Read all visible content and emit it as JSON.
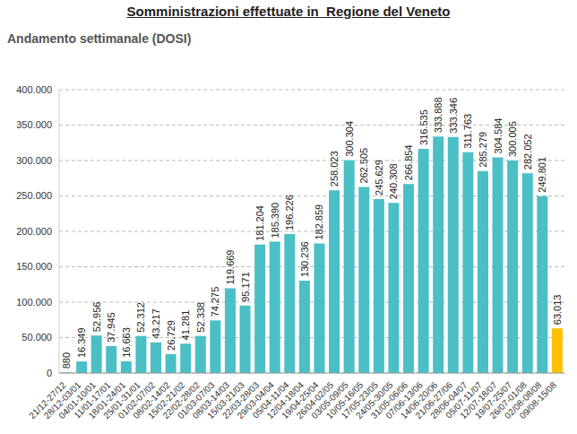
{
  "chart_data": {
    "type": "bar",
    "title": "Somministrazioni effettuate in  Regione del Veneto",
    "subtitle": "Andamento settimanale (DOSI)",
    "categories": [
      "21/12-27/12",
      "28/12-03/01",
      "04/01-10/01",
      "11/01-17/01",
      "18/01-24/01",
      "25/01-31/01",
      "01/02-07/02",
      "08/02-14/02",
      "15/02-21/02",
      "22/02-28/02",
      "01/03-07/03",
      "08/03-14/03",
      "15/03-21/03",
      "22/03-28/03",
      "29/03-04/04",
      "05/04-11/04",
      "12/04-18/04",
      "19/04-25/04",
      "26/04-02/05",
      "03/05-09/05",
      "10/05-16/05",
      "17/05-23/05",
      "24/05-30/05",
      "31/05-06/06",
      "07/06-13/06",
      "14/06-20/06",
      "21/06-27/06",
      "28/06-04/07",
      "05/07-11/07",
      "12/07-18/07",
      "19/07-25/07",
      "26/07-01/08",
      "02/08-08/08",
      "09/08-15/08"
    ],
    "values": [
      880,
      16349,
      52956,
      37945,
      16663,
      52312,
      43217,
      26729,
      41281,
      52338,
      74275,
      119669,
      95171,
      181204,
      185390,
      196226,
      130236,
      182859,
      258023,
      300304,
      262505,
      245629,
      240308,
      266854,
      316535,
      333888,
      333346,
      311763,
      285279,
      304584,
      300005,
      282052,
      249801,
      63013
    ],
    "value_labels": [
      "880",
      "16.349",
      "52.956",
      "37.945",
      "16.663",
      "52.312",
      "43.217",
      "26.729",
      "41.281",
      "52.338",
      "74.275",
      "119.669",
      "95.171",
      "181.204",
      "185.390",
      "196.226",
      "130.236",
      "182.859",
      "258.023",
      "300.304",
      "262.505",
      "245.629",
      "240.308",
      "266.854",
      "316.535",
      "333.888",
      "333.346",
      "311.763",
      "285.279",
      "304.584",
      "300.005",
      "282.052",
      "249.801",
      "63.013"
    ],
    "colors": [
      "#4bbfc6",
      "#4bbfc6",
      "#4bbfc6",
      "#4bbfc6",
      "#4bbfc6",
      "#4bbfc6",
      "#4bbfc6",
      "#4bbfc6",
      "#4bbfc6",
      "#4bbfc6",
      "#4bbfc6",
      "#4bbfc6",
      "#4bbfc6",
      "#4bbfc6",
      "#4bbfc6",
      "#4bbfc6",
      "#4bbfc6",
      "#4bbfc6",
      "#4bbfc6",
      "#4bbfc6",
      "#4bbfc6",
      "#4bbfc6",
      "#4bbfc6",
      "#4bbfc6",
      "#4bbfc6",
      "#4bbfc6",
      "#4bbfc6",
      "#4bbfc6",
      "#4bbfc6",
      "#4bbfc6",
      "#4bbfc6",
      "#4bbfc6",
      "#4bbfc6",
      "#ffc000"
    ],
    "ylim": [
      0,
      400000
    ],
    "yticks": [
      0,
      {
        "value": 50000,
        "label": "50.000"
      },
      {
        "value": 100000,
        "label": "100.000"
      },
      {
        "value": 150000,
        "label": "150.000"
      },
      {
        "value": 200000,
        "label": "200.000"
      },
      {
        "value": 250000,
        "label": "250.000"
      },
      {
        "value": 300000,
        "label": "300.000"
      },
      {
        "value": 350000,
        "label": "350.000"
      },
      {
        "value": 400000,
        "label": "400.000"
      }
    ],
    "grid": true,
    "data_labels": true
  }
}
